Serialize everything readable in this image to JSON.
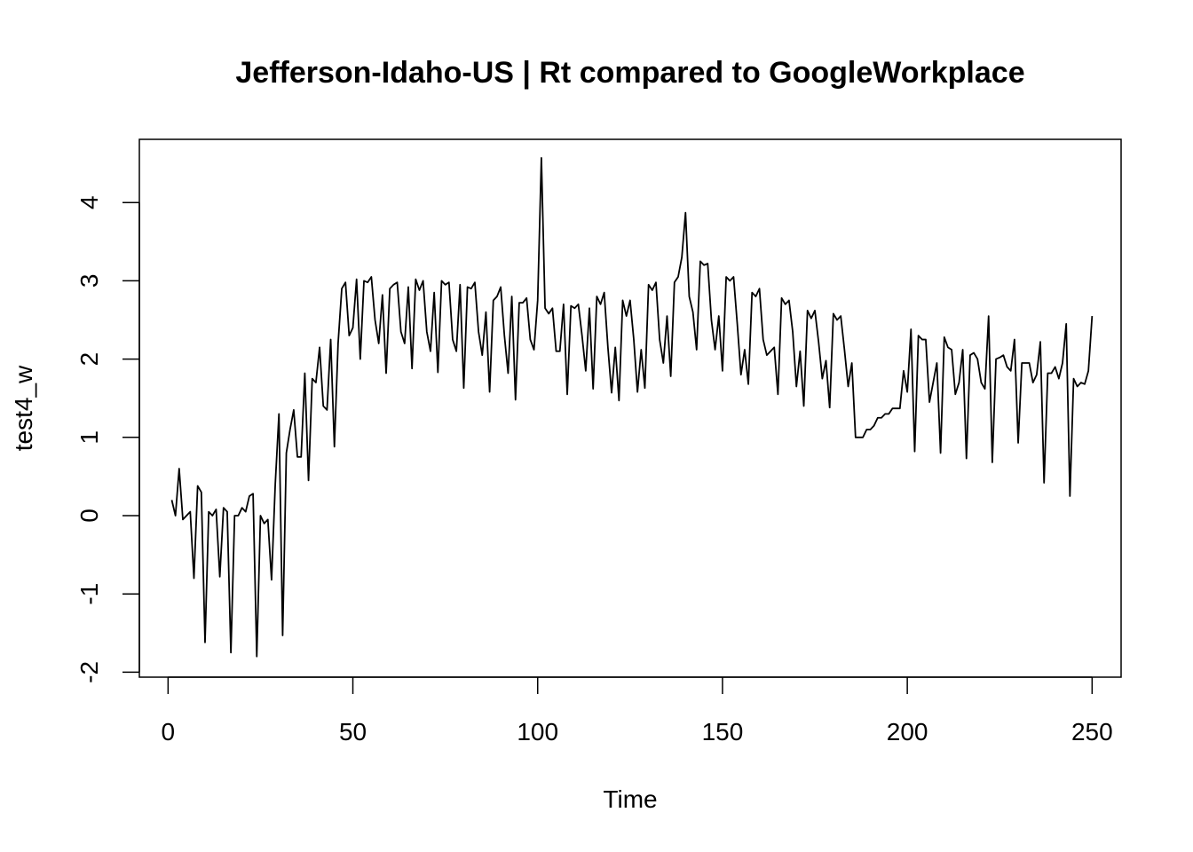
{
  "chart_data": {
    "type": "line",
    "title": "Jefferson-Idaho-US | Rt compared to GoogleWorkplace",
    "xlabel": "Time",
    "ylabel": "test4_w",
    "xlim": [
      1,
      248
    ],
    "ylim": [
      -1.8,
      4.55
    ],
    "x_ticks": [
      0,
      50,
      100,
      150,
      200,
      250
    ],
    "y_ticks": [
      -2,
      -1,
      0,
      1,
      2,
      3,
      4
    ],
    "grid": false,
    "legend": "none",
    "line_color": "#000000",
    "x_start": 1,
    "values": [
      0.2,
      0.0,
      0.6,
      -0.05,
      0.0,
      0.05,
      -0.8,
      0.38,
      0.3,
      -1.62,
      0.05,
      0.0,
      0.08,
      -0.78,
      0.1,
      0.05,
      -1.75,
      0.0,
      0.0,
      0.1,
      0.05,
      0.25,
      0.28,
      -1.8,
      0.0,
      -0.1,
      -0.05,
      -0.82,
      0.4,
      1.3,
      -1.53,
      0.8,
      1.1,
      1.35,
      0.75,
      0.75,
      1.82,
      0.45,
      1.75,
      1.7,
      2.15,
      1.4,
      1.35,
      2.25,
      0.88,
      2.2,
      2.9,
      2.98,
      2.3,
      2.4,
      3.02,
      2.0,
      3.0,
      2.98,
      3.05,
      2.5,
      2.2,
      2.82,
      1.82,
      2.9,
      2.95,
      2.98,
      2.35,
      2.2,
      2.92,
      1.88,
      3.02,
      2.88,
      3.0,
      2.35,
      2.1,
      2.85,
      1.83,
      3.0,
      2.95,
      2.98,
      2.25,
      2.1,
      2.95,
      1.63,
      2.92,
      2.9,
      2.98,
      2.35,
      2.05,
      2.6,
      1.58,
      2.75,
      2.8,
      2.92,
      2.3,
      1.82,
      2.8,
      1.48,
      2.72,
      2.72,
      2.78,
      2.25,
      2.12,
      2.75,
      4.57,
      2.65,
      2.58,
      2.65,
      2.1,
      2.1,
      2.7,
      1.55,
      2.68,
      2.65,
      2.7,
      2.3,
      1.85,
      2.65,
      1.62,
      2.8,
      2.7,
      2.85,
      2.15,
      1.57,
      2.15,
      1.47,
      2.75,
      2.55,
      2.75,
      2.25,
      1.58,
      2.12,
      1.63,
      2.95,
      2.88,
      2.98,
      2.25,
      1.95,
      2.55,
      1.78,
      2.98,
      3.05,
      3.3,
      3.87,
      2.8,
      2.6,
      2.12,
      3.25,
      3.2,
      3.22,
      2.5,
      2.12,
      2.55,
      1.85,
      3.05,
      3.0,
      3.05,
      2.45,
      1.8,
      2.12,
      1.68,
      2.85,
      2.8,
      2.9,
      2.25,
      2.05,
      2.1,
      2.15,
      1.55,
      2.78,
      2.7,
      2.75,
      2.35,
      1.65,
      2.1,
      1.4,
      2.62,
      2.52,
      2.62,
      2.22,
      1.75,
      1.98,
      1.38,
      2.58,
      2.5,
      2.55,
      2.12,
      1.65,
      1.95,
      1.0,
      1.0,
      1.0,
      1.1,
      1.1,
      1.15,
      1.25,
      1.25,
      1.3,
      1.3,
      1.37,
      1.37,
      1.37,
      1.85,
      1.58,
      2.38,
      0.82,
      2.3,
      2.25,
      2.25,
      1.45,
      1.7,
      1.95,
      0.8,
      2.28,
      2.15,
      2.12,
      1.55,
      1.7,
      2.12,
      0.73,
      2.05,
      2.08,
      2.0,
      1.7,
      1.62,
      2.55,
      0.68,
      2.0,
      2.02,
      2.05,
      1.9,
      1.85,
      2.25,
      0.93,
      1.95,
      1.95,
      1.95,
      1.7,
      1.8,
      2.22,
      0.42,
      1.82,
      1.82,
      1.9,
      1.75,
      1.95,
      2.45,
      0.25,
      1.75,
      1.65,
      1.7,
      1.68,
      1.85,
      2.55
    ]
  }
}
